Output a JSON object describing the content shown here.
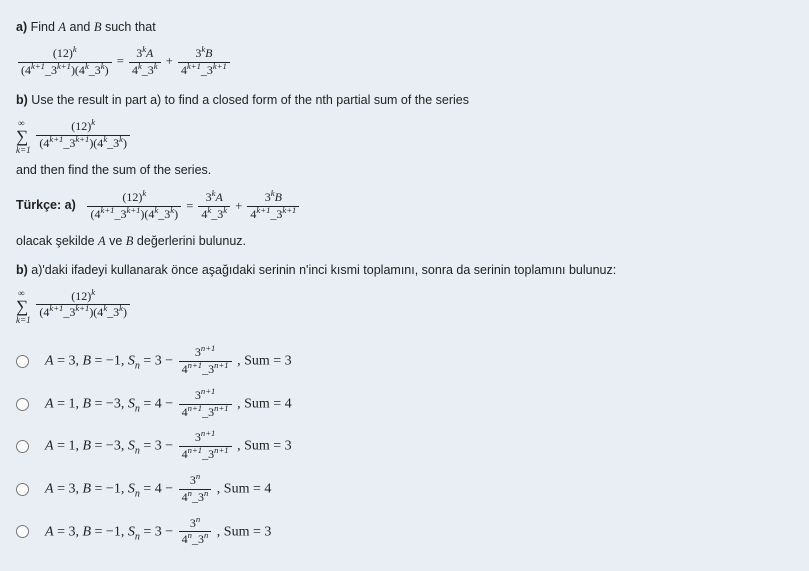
{
  "question": {
    "a_label": "a)",
    "a_text": " Find ",
    "a_text2": " and ",
    "a_text3": " such that",
    "A": "A",
    "B": "B",
    "eq1_frac1_num": "(12)",
    "eq1_frac1_num_sup": "k",
    "eq1_frac1_den": "(4",
    "eq1_frac1_den_sup1": "k+1",
    "eq1_frac1_den_mid": "_3",
    "eq1_frac1_den_sup2": "k+1",
    "eq1_frac1_den_mid2": ")(4",
    "eq1_frac1_den_sup3": "k",
    "eq1_frac1_den_mid3": "_3",
    "eq1_frac1_den_sup4": "k",
    "eq1_frac1_den_end": ")",
    "eq1_eq": " = ",
    "eq1_f2_num": "3",
    "eq1_f2_num_sup": "k",
    "eq1_f2_num_A": "A",
    "eq1_f2_den": "4",
    "eq1_f2_den_sup": "k",
    "eq1_f2_den_mid": "_3",
    "eq1_f2_den_sup2": "k",
    "eq1_plus": " + ",
    "eq1_f3_num": "3",
    "eq1_f3_num_sup": "k",
    "eq1_f3_num_B": "B",
    "eq1_f3_den": "4",
    "eq1_f3_den_sup": "k+1",
    "eq1_f3_den_mid": "_3",
    "eq1_f3_den_sup2": "k+1",
    "b_label": "b)",
    "b_text": " Use the result in part a) to find a closed form of the nth partial sum of the series",
    "sum_inf": "∞",
    "sum_k1": "k=1",
    "after_sum_text": "and then find the sum of the series.",
    "turkce_label": "Türkçe: a)",
    "olacak": "olacak şekilde ",
    "olacak_mid": " ve ",
    "olacak_end": " değerlerini bulunuz.",
    "tb_label": "b)",
    "tb_text": " a)'daki ifadeyi kullanarak önce aşağıdaki serinin n'inci kısmi toplamını, sonra da serinin toplamını bulunuz:"
  },
  "options": [
    {
      "A": "3",
      "B": "−1",
      "Sn": "3",
      "fn_top_base": "3",
      "fn_top_exp": "n+1",
      "fn_bot_l_base": "4",
      "fn_bot_l_exp": "n+1",
      "fn_bot_r_base": "3",
      "fn_bot_r_exp": "n+1",
      "Sum": "3"
    },
    {
      "A": "1",
      "B": "−3",
      "Sn": "4",
      "fn_top_base": "3",
      "fn_top_exp": "n+1",
      "fn_bot_l_base": "4",
      "fn_bot_l_exp": "n+1",
      "fn_bot_r_base": "3",
      "fn_bot_r_exp": "n+1",
      "Sum": "4"
    },
    {
      "A": "1",
      "B": "−3",
      "Sn": "3",
      "fn_top_base": "3",
      "fn_top_exp": "n+1",
      "fn_bot_l_base": "4",
      "fn_bot_l_exp": "n+1",
      "fn_bot_r_base": "3",
      "fn_bot_r_exp": "n+1",
      "Sum": "3"
    },
    {
      "A": "3",
      "B": "−1",
      "Sn": "4",
      "fn_top_base": "3",
      "fn_top_exp": "n",
      "fn_bot_l_base": "4",
      "fn_bot_l_exp": "n",
      "fn_bot_r_base": "3",
      "fn_bot_r_exp": "n",
      "Sum": "4"
    },
    {
      "A": "3",
      "B": "−1",
      "Sn": "3",
      "fn_top_base": "3",
      "fn_top_exp": "n",
      "fn_bot_l_base": "4",
      "fn_bot_l_exp": "n",
      "fn_bot_r_base": "3",
      "fn_bot_r_exp": "n",
      "Sum": "3"
    }
  ],
  "labels": {
    "A_eq": "A = ",
    "B_eq": ", B = ",
    "Sn_eq": ", S",
    "n_sub": "n",
    "eq": " = ",
    "minus": " − ",
    "Sum_eq": " , Sum = "
  }
}
